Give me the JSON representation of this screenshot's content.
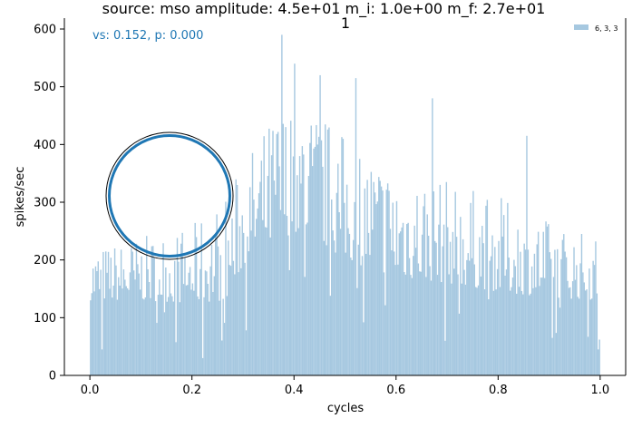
{
  "chart_data": {
    "type": "bar",
    "title_line1": "source: mso amplitude: 4.5e+01 m_i: 1.0e+00 m_f: 2.7e+01",
    "title_line2": "1",
    "annotation": "vs: 0.152, p: 0.000",
    "xlabel": "cycles",
    "ylabel": "spikes/sec",
    "xlim": [
      -0.05,
      1.05
    ],
    "ylim": [
      0,
      600
    ],
    "xticks": [
      0.0,
      0.2,
      0.4,
      0.6,
      0.8,
      1.0
    ],
    "xtick_labels": [
      "0.0",
      "0.2",
      "0.4",
      "0.6",
      "0.8",
      "1.0"
    ],
    "yticks": [
      0,
      100,
      200,
      300,
      400,
      500,
      600
    ],
    "ytick_labels": [
      "0",
      "100",
      "200",
      "300",
      "400",
      "500",
      "600"
    ],
    "legend": {
      "position": "top-right",
      "entries": [
        "6, 3, 3"
      ]
    },
    "bar_color": "#a6c8e0",
    "circle_color": "#1f77b4",
    "num_bins": 400,
    "x_range": [
      0.0,
      1.0
    ],
    "envelope": [
      {
        "x": 0.0,
        "base": 130,
        "peak": 220
      },
      {
        "x": 0.1,
        "base": 130,
        "peak": 240
      },
      {
        "x": 0.2,
        "base": 125,
        "peak": 260
      },
      {
        "x": 0.27,
        "base": 130,
        "peak": 320
      },
      {
        "x": 0.3,
        "base": 190,
        "peak": 370
      },
      {
        "x": 0.37,
        "base": 230,
        "peak": 470
      },
      {
        "x": 0.4,
        "base": 250,
        "peak": 480
      },
      {
        "x": 0.45,
        "base": 230,
        "peak": 460
      },
      {
        "x": 0.5,
        "base": 200,
        "peak": 420
      },
      {
        "x": 0.6,
        "base": 170,
        "peak": 370
      },
      {
        "x": 0.7,
        "base": 160,
        "peak": 340
      },
      {
        "x": 0.8,
        "base": 145,
        "peak": 310
      },
      {
        "x": 0.9,
        "base": 135,
        "peak": 270
      },
      {
        "x": 1.0,
        "base": 130,
        "peak": 240
      }
    ],
    "notable_bars": [
      {
        "x": 0.375,
        "y": 590
      },
      {
        "x": 0.4,
        "y": 540
      },
      {
        "x": 0.45,
        "y": 520
      },
      {
        "x": 0.52,
        "y": 515
      },
      {
        "x": 0.67,
        "y": 480
      },
      {
        "x": 0.855,
        "y": 415
      },
      {
        "x": 0.024,
        "y": 45
      },
      {
        "x": 0.22,
        "y": 30
      },
      {
        "x": 0.695,
        "y": 60
      },
      {
        "x": 0.905,
        "y": 65
      },
      {
        "x": 0.995,
        "y": 45
      }
    ],
    "polar_inset": {
      "type": "vector-strength",
      "value": 0.152
    }
  }
}
